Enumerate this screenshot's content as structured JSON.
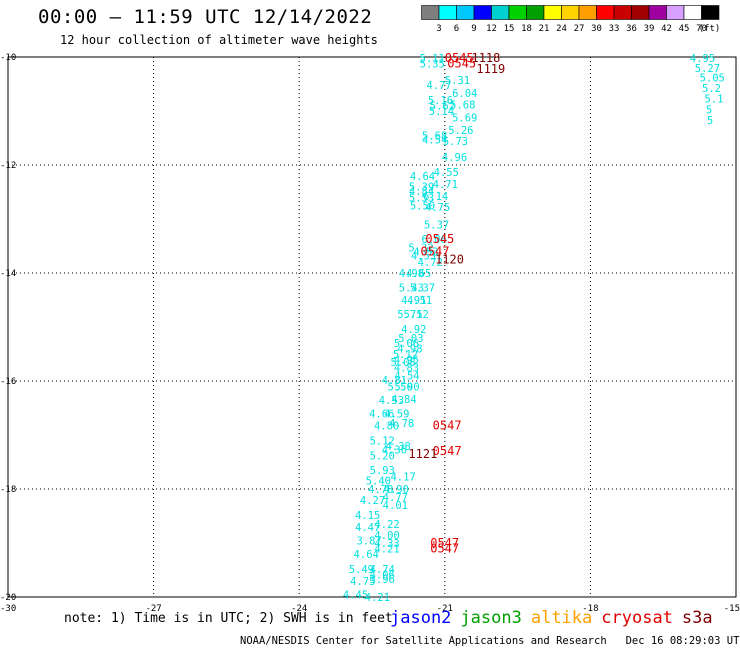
{
  "header": {
    "title": "00:00 – 11:59 UTC 12/14/2022",
    "subtitle": "12 hour collection of altimeter wave heights"
  },
  "legend_scale": {
    "labels": [
      "3",
      "6",
      "9",
      "12",
      "15",
      "18",
      "21",
      "24",
      "27",
      "30",
      "33",
      "36",
      "39",
      "42",
      "45",
      "70"
    ],
    "unit": "(ft)",
    "colors": [
      "#7f7f7f",
      "#00ffff",
      "#00c8ff",
      "#0000ff",
      "#00d0d0",
      "#00d200",
      "#00a000",
      "#ffff00",
      "#ffd200",
      "#ffa000",
      "#ff0000",
      "#c80000",
      "#a00000",
      "#a000a0",
      "#d8a0ff",
      "#ffffff",
      "#000000"
    ]
  },
  "map": {
    "lat_labels": [
      {
        "value": -10,
        "label": "-10"
      },
      {
        "value": -12,
        "label": "-12"
      },
      {
        "value": -14,
        "label": "-14"
      },
      {
        "value": -16,
        "label": "-16"
      },
      {
        "value": -18,
        "label": "-18"
      },
      {
        "value": -20,
        "label": "-20"
      }
    ],
    "lon_labels": [
      {
        "value": -30,
        "label": "-30"
      },
      {
        "value": -27,
        "label": "-27"
      },
      {
        "value": -24,
        "label": "-24"
      },
      {
        "value": -21,
        "label": "-21"
      },
      {
        "value": -18,
        "label": "-18"
      },
      {
        "value": -15,
        "label": "-15"
      }
    ],
    "cyan_color": "#00e0e0",
    "red_color": "#e00000",
    "dark_red_color": "#800000",
    "wave_points": [
      [
        "5.11",
        -21.52,
        -10.02
      ],
      [
        "5.35",
        -21.52,
        -10.12
      ],
      [
        "4.77",
        -21.38,
        -10.52
      ],
      [
        "5.31",
        -21.0,
        -10.43
      ],
      [
        "6.04",
        -20.85,
        -10.67
      ],
      [
        "5.16",
        -21.35,
        -10.8
      ],
      [
        "5.62",
        -21.31,
        -10.9
      ],
      [
        "5.68",
        -20.89,
        -10.88
      ],
      [
        "5.14",
        -21.33,
        -11.0
      ],
      [
        "5.69",
        -20.85,
        -11.12
      ],
      [
        "5.26",
        -20.93,
        -11.35
      ],
      [
        "5.68",
        -21.47,
        -11.45
      ],
      [
        "4.54",
        -21.47,
        -11.53
      ],
      [
        "5.73",
        -21.04,
        -11.56
      ],
      [
        "4.96",
        -21.06,
        -11.85
      ],
      [
        "4.55",
        -21.23,
        -12.13
      ],
      [
        "4.64",
        -21.72,
        -12.2
      ],
      [
        "4.71",
        -21.25,
        -12.35
      ],
      [
        "5.39",
        -21.74,
        -12.4
      ],
      [
        "4.84",
        -21.74,
        -12.48
      ],
      [
        "6.14",
        -21.45,
        -12.57
      ],
      [
        "5.53",
        -21.74,
        -12.6
      ],
      [
        "5.50",
        -21.72,
        -12.75
      ],
      [
        "4.75",
        -21.41,
        -12.78
      ],
      [
        "5.37",
        -21.43,
        -13.1
      ],
      [
        "6.06",
        -21.48,
        -13.37
      ],
      [
        "5.32",
        -21.75,
        -13.53
      ],
      [
        "4.53",
        -21.65,
        -13.6
      ],
      [
        "4.53",
        -21.7,
        -13.68
      ],
      [
        "4.72",
        -21.56,
        -13.8
      ],
      [
        "4.98",
        -21.95,
        -14.0
      ],
      [
        "4.65",
        -21.8,
        -14.0
      ],
      [
        "5.37",
        -21.72,
        -14.27
      ],
      [
        "5.43",
        -21.95,
        -14.27
      ],
      [
        "4.51",
        -21.78,
        -14.5
      ],
      [
        "4.91",
        -21.9,
        -14.5
      ],
      [
        "5.12",
        -21.85,
        -14.76
      ],
      [
        "5.75",
        -21.98,
        -14.76
      ],
      [
        "4.92",
        -21.9,
        -15.04
      ],
      [
        "5.03",
        -21.96,
        -15.2
      ],
      [
        "5.06",
        -22.05,
        -15.3
      ],
      [
        "4.98",
        -21.98,
        -15.4
      ],
      [
        "5.12",
        -22.07,
        -15.5
      ],
      [
        "4.95",
        -22.05,
        -15.6
      ],
      [
        "5.08",
        -22.12,
        -15.65
      ],
      [
        "4.83",
        -22.05,
        -15.75
      ],
      [
        "4.54",
        -22.04,
        -15.9
      ],
      [
        "4.81",
        -22.3,
        -15.98
      ],
      [
        "5.50",
        -22.18,
        -16.1
      ],
      [
        "5.90",
        -22.04,
        -16.1
      ],
      [
        "4.53",
        -22.36,
        -16.35
      ],
      [
        "4.84",
        -22.1,
        -16.33
      ],
      [
        "4.66",
        -22.56,
        -16.6
      ],
      [
        "4.59",
        -22.25,
        -16.6
      ],
      [
        "4.80",
        -22.46,
        -16.82
      ],
      [
        "4.78",
        -22.15,
        -16.78
      ],
      [
        "5.12",
        -22.55,
        -17.1
      ],
      [
        "4.38",
        -22.22,
        -17.2
      ],
      [
        "4.36",
        -22.3,
        -17.27
      ],
      [
        "5.20",
        -22.55,
        -17.38
      ],
      [
        "5.93",
        -22.55,
        -17.65
      ],
      [
        "4.17",
        -22.12,
        -17.77
      ],
      [
        "5.40",
        -22.63,
        -17.84
      ],
      [
        "4.78",
        -22.58,
        -18.0
      ],
      [
        "4.90",
        -22.26,
        -18.0
      ],
      [
        "4.77",
        -22.28,
        -18.15
      ],
      [
        "4.27",
        -22.75,
        -18.2
      ],
      [
        "4.01",
        -22.28,
        -18.3
      ],
      [
        "4.15",
        -22.85,
        -18.48
      ],
      [
        "4.22",
        -22.45,
        -18.65
      ],
      [
        "4.47",
        -22.85,
        -18.7
      ],
      [
        "4.00",
        -22.45,
        -18.85
      ],
      [
        "3.87",
        -22.82,
        -18.95
      ],
      [
        "4.33",
        -22.45,
        -19.0
      ],
      [
        "4.21",
        -22.45,
        -19.1
      ],
      [
        "4.64",
        -22.88,
        -19.2
      ],
      [
        "5.49",
        -22.98,
        -19.48
      ],
      [
        "4.74",
        -22.55,
        -19.48
      ],
      [
        "4.06",
        -22.55,
        -19.58
      ],
      [
        "3.96",
        -22.55,
        -19.67
      ],
      [
        "4.75",
        -22.95,
        -19.7
      ],
      [
        "4.45",
        -23.1,
        -19.95
      ],
      [
        "4.21",
        -22.65,
        -20.0
      ],
      [
        "4.95",
        -15.95,
        -10.02
      ],
      [
        "5.27",
        -15.85,
        -10.2
      ],
      [
        "5.05",
        -15.75,
        -10.38
      ],
      [
        "5.2",
        -15.7,
        -10.57
      ],
      [
        "5.1",
        -15.65,
        -10.77
      ],
      [
        "5",
        -15.62,
        -10.97
      ],
      [
        "5",
        -15.6,
        -11.17
      ]
    ],
    "time_labels_red": [
      [
        "0545",
        -21.0,
        -10.02
      ],
      [
        "0545",
        -20.95,
        -10.12
      ],
      [
        "0545",
        -21.4,
        -13.37
      ],
      [
        "0547",
        -21.5,
        -13.6
      ],
      [
        "0547",
        -21.25,
        -16.82
      ],
      [
        "0547",
        -21.25,
        -17.3
      ],
      [
        "0547",
        -21.3,
        -19.0
      ],
      [
        "0547",
        -21.3,
        -19.1
      ]
    ],
    "time_labels_dark": [
      [
        "1118",
        -20.45,
        -10.02
      ],
      [
        "1119",
        -20.35,
        -10.22
      ],
      [
        "1120",
        -21.2,
        -13.75
      ],
      [
        "1121",
        -21.75,
        -17.35
      ]
    ]
  },
  "footer": {
    "note": "note: 1) Time is in UTC; 2) SWH is in feet",
    "satellites": [
      {
        "name": "jason2",
        "color": "#0000ff"
      },
      {
        "name": "jason3",
        "color": "#00a000"
      },
      {
        "name": "altika",
        "color": "#ffa000"
      },
      {
        "name": "cryosat",
        "color": "#e00000"
      },
      {
        "name": "s3a",
        "color": "#800000"
      }
    ],
    "credit": "NOAA/NESDIS Center for Satellite Applications and Research   Dec 16 08:29:03 UTC 2022"
  }
}
